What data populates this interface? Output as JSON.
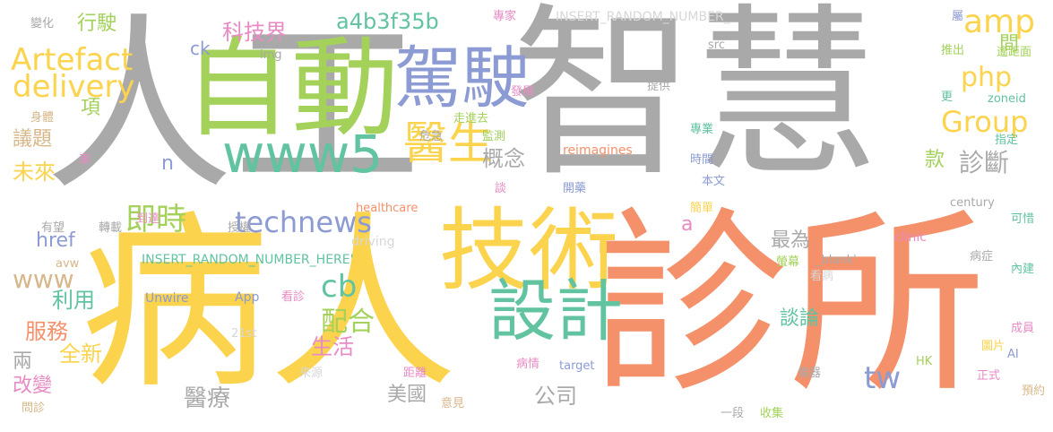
{
  "words": [
    {
      "text": "人工",
      "color": "#a9a9a9"
    },
    {
      "text": "智慧",
      "color": "#a9a9a9"
    },
    {
      "text": "病人",
      "color": "#fcd34d"
    },
    {
      "text": "診所",
      "color": "#f4906a"
    },
    {
      "text": "自動",
      "color": "#a3d15a"
    },
    {
      "text": "駕駛",
      "color": "#8c9bd3"
    },
    {
      "text": "技術",
      "color": "#fcd34d"
    },
    {
      "text": "設計",
      "color": "#61c3a0"
    },
    {
      "text": "www5",
      "color": "#61c3a0"
    },
    {
      "text": "醫生",
      "color": "#fcd34d"
    },
    {
      "text": "Artefact",
      "color": "#fcd34d"
    },
    {
      "text": "delivery",
      "color": "#fcd34d"
    },
    {
      "text": "technews",
      "color": "#8c9bd3"
    },
    {
      "text": "即時",
      "color": "#a3d15a"
    },
    {
      "text": "a4b3f35b",
      "color": "#61c3a0"
    },
    {
      "text": "amp",
      "color": "#fcd34d"
    },
    {
      "text": "php",
      "color": "#fcd34d"
    },
    {
      "text": "Group",
      "color": "#fcd34d"
    },
    {
      "text": "cb",
      "color": "#61c3a0"
    },
    {
      "text": "配合",
      "color": "#a3d15a"
    },
    {
      "text": "tw",
      "color": "#8c9bd3"
    },
    {
      "text": "診斷",
      "color": "#a9a9a9"
    },
    {
      "text": "概念",
      "color": "#a9a9a9"
    },
    {
      "text": "科技界",
      "color": "#e88bc4"
    },
    {
      "text": "行駛",
      "color": "#a3d15a"
    },
    {
      "text": "項",
      "color": "#a3d15a"
    },
    {
      "text": "議題",
      "color": "#d7b78a"
    },
    {
      "text": "未來",
      "color": "#fcd34d"
    },
    {
      "text": "href",
      "color": "#8c9bd3"
    },
    {
      "text": "www",
      "color": "#d7b78a"
    },
    {
      "text": "利用",
      "color": "#61c3a0"
    },
    {
      "text": "服務",
      "color": "#f4906a"
    },
    {
      "text": "全新",
      "color": "#fcd34d"
    },
    {
      "text": "兩",
      "color": "#a9a9a9"
    },
    {
      "text": "改變",
      "color": "#e88bc4"
    },
    {
      "text": "醫療",
      "color": "#a9a9a9"
    },
    {
      "text": "美國",
      "color": "#a9a9a9"
    },
    {
      "text": "公司",
      "color": "#a9a9a9"
    },
    {
      "text": "生活",
      "color": "#e88bc4"
    },
    {
      "text": "談論",
      "color": "#61c3a0"
    },
    {
      "text": "最為",
      "color": "#a9a9a9"
    },
    {
      "text": "款",
      "color": "#a3d15a"
    },
    {
      "text": "間",
      "color": "#a3d15a"
    },
    {
      "text": "ck",
      "color": "#8c9bd3"
    },
    {
      "text": "n",
      "color": "#8c9bd3"
    },
    {
      "text": "a",
      "color": "#e88bc4"
    },
    {
      "text": "img",
      "color": "#a9a9a9"
    },
    {
      "text": "變化",
      "color": "#a9a9a9"
    },
    {
      "text": "身體",
      "color": "#d7b78a"
    },
    {
      "text": "車",
      "color": "#e88bc4"
    },
    {
      "text": "有望",
      "color": "#a9a9a9"
    },
    {
      "text": "轉載",
      "color": "#a9a9a9"
    },
    {
      "text": "到達",
      "color": "#e88bc4"
    },
    {
      "text": "授權",
      "color": "#a9a9a9"
    },
    {
      "text": "avw",
      "color": "#d7b78a"
    },
    {
      "text": "INSERT_RANDOM_NUMBER_HERE'",
      "color": "#61c3a0"
    },
    {
      "text": "INSERT_RANDOM_NUMBER_",
      "color": "#d7d7d7"
    },
    {
      "text": "專家",
      "color": "#e88bc4"
    },
    {
      "text": "src",
      "color": "#a9a9a9"
    },
    {
      "text": "driving",
      "color": "#d7d7d7"
    },
    {
      "text": "healthcare",
      "color": "#f4906a"
    },
    {
      "text": "Unwire",
      "color": "#8c9bd3"
    },
    {
      "text": "App",
      "color": "#8c9bd3"
    },
    {
      "text": "看診",
      "color": "#e88bc4"
    },
    {
      "text": "21st",
      "color": "#d7d7d7"
    },
    {
      "text": "來源",
      "color": "#d7d7d7"
    },
    {
      "text": "距離",
      "color": "#e88bc4"
    },
    {
      "text": "病情",
      "color": "#e88bc4"
    },
    {
      "text": "target",
      "color": "#8c9bd3"
    },
    {
      "text": "意見",
      "color": "#d7b78a"
    },
    {
      "text": "問診",
      "color": "#d7b78a"
    },
    {
      "text": "reimagines",
      "color": "#f4906a"
    },
    {
      "text": "開藥",
      "color": "#8c9bd3"
    },
    {
      "text": "時間",
      "color": "#8c9bd3"
    },
    {
      "text": "專業",
      "color": "#61c3a0"
    },
    {
      "text": "本文",
      "color": "#8c9bd3"
    },
    {
      "text": "簡單",
      "color": "#fcd34d"
    },
    {
      "text": "_blank'",
      "color": "#a9a9a9"
    },
    {
      "text": "螢幕",
      "color": "#a3d15a"
    },
    {
      "text": "看病",
      "color": "#d7d7d7"
    },
    {
      "text": "HK",
      "color": "#a3d15a"
    },
    {
      "text": "一段",
      "color": "#a9a9a9"
    },
    {
      "text": "收集",
      "color": "#a3d15a"
    },
    {
      "text": "儀器",
      "color": "#a9a9a9"
    },
    {
      "text": "正式",
      "color": "#e88bc4"
    },
    {
      "text": "預約",
      "color": "#d7b78a"
    },
    {
      "text": "圖片",
      "color": "#fcd34d"
    },
    {
      "text": "AI",
      "color": "#8c9bd3"
    },
    {
      "text": "成員",
      "color": "#e88bc4"
    },
    {
      "text": "內建",
      "color": "#61c3a0"
    },
    {
      "text": "病症",
      "color": "#a9a9a9"
    },
    {
      "text": "clinic",
      "color": "#e88bc4"
    },
    {
      "text": "century",
      "color": "#a9a9a9"
    },
    {
      "text": "可惜",
      "color": "#61c3a0"
    },
    {
      "text": "指定",
      "color": "#61c3a0"
    },
    {
      "text": "zoneid",
      "color": "#61c3a0"
    },
    {
      "text": "更",
      "color": "#61c3a0"
    },
    {
      "text": "推出",
      "color": "#a3d15a"
    },
    {
      "text": "遙距面",
      "color": "#a3d15a"
    },
    {
      "text": "屬",
      "color": "#8c9bd3"
    },
    {
      "text": "提供",
      "color": "#a9a9a9"
    },
    {
      "text": "發展",
      "color": "#e88bc4"
    },
    {
      "text": "監測",
      "color": "#a3d15a"
    },
    {
      "text": "走進去",
      "color": "#a3d15a"
    },
    {
      "text": "危急",
      "color": "#a9a9a9"
    },
    {
      "text": "談",
      "color": "#e88bc4"
    }
  ]
}
